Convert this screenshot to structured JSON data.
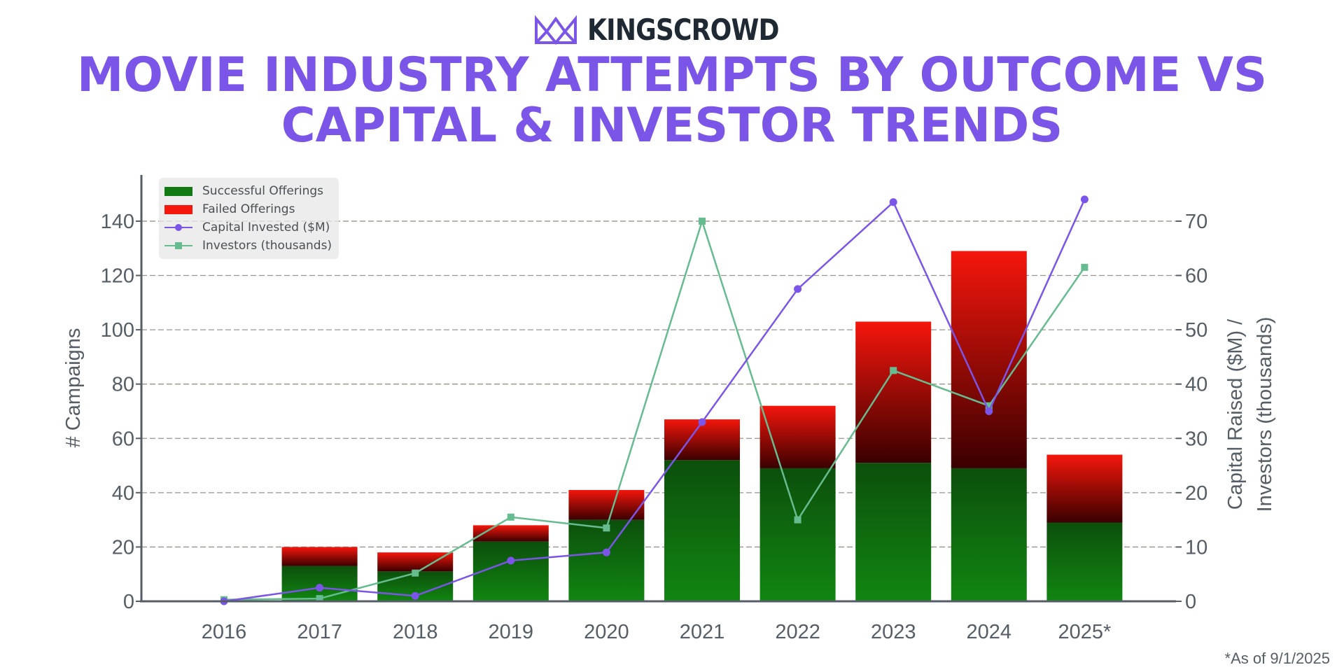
{
  "brand": {
    "name": "KINGSCROWD",
    "logo_icon": "crown-icon",
    "color": "#7b55e8"
  },
  "title_lines": [
    "MOVIE INDUSTRY ATTEMPTS BY OUTCOME VS",
    "CAPITAL & INVESTOR TRENDS"
  ],
  "footnote": "*As of 9/1/2025",
  "colors": {
    "title": "#7b55e8",
    "success_top": "#0c4f0c",
    "success_bottom": "#118611",
    "failed_top": "#f5160c",
    "failed_bottom": "#3a0000",
    "capital_line": "#7b55e8",
    "investors_line": "#66bb8f",
    "axis": "#555e66"
  },
  "legend": {
    "items": [
      {
        "label": "Successful Offerings",
        "kind": "box",
        "color": "#117a11"
      },
      {
        "label": "Failed Offerings",
        "kind": "box",
        "color": "#f5160c"
      },
      {
        "label": "Capital Invested ($M)",
        "kind": "line-dot",
        "color": "#7b55e8"
      },
      {
        "label": "Investors (thousands)",
        "kind": "line-square",
        "color": "#66bb8f"
      }
    ]
  },
  "chart_data": {
    "type": "bar",
    "stacked": true,
    "categories": [
      "2016",
      "2017",
      "2018",
      "2019",
      "2020",
      "2021",
      "2022",
      "2023",
      "2024",
      "2025*"
    ],
    "series": [
      {
        "name": "Successful Offerings",
        "axis": "left",
        "values": [
          0,
          13,
          11,
          22,
          30,
          52,
          49,
          51,
          49,
          29
        ]
      },
      {
        "name": "Failed Offerings",
        "axis": "left",
        "values": [
          0,
          7,
          7,
          6,
          11,
          15,
          23,
          52,
          80,
          25
        ]
      },
      {
        "name": "Capital Invested ($M)",
        "type": "line",
        "axis": "right",
        "values": [
          0,
          2.5,
          1,
          7.5,
          9,
          33,
          57.5,
          73.5,
          35,
          74
        ]
      },
      {
        "name": "Investors (thousands)",
        "type": "line",
        "axis": "right",
        "values": [
          0.3,
          0.5,
          5.2,
          15.5,
          13.5,
          70,
          15,
          42.5,
          36,
          61.5
        ]
      }
    ],
    "ylabel": "# Campaigns",
    "y2label_lines": [
      "Capital Raised ($M) /",
      "Investors (thousands)"
    ],
    "ylim": [
      0,
      157
    ],
    "y2lim": [
      0,
      78.5
    ],
    "yticks": [
      0,
      20,
      40,
      60,
      80,
      100,
      120,
      140
    ],
    "y2ticks": [
      0,
      10,
      20,
      30,
      40,
      50,
      60,
      70
    ],
    "grid": "horizontal-dashed",
    "legend_position": "top-left"
  }
}
